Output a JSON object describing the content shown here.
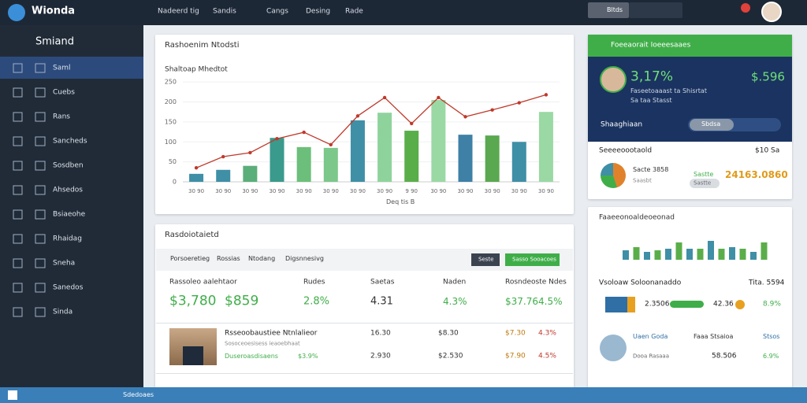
{
  "topbar": {
    "brand": "Wionda",
    "nav": [
      "Nadeerd tig",
      "Sandis",
      "Cangs",
      "Desing",
      "Rade"
    ],
    "search": "Bltds"
  },
  "sidebar": {
    "title": "Smiand",
    "items": [
      "Saml",
      "Cuebs",
      "Rans",
      "Sancheds",
      "Sosdben",
      "Ahsedos",
      "Bsiaeohe",
      "Rhaidag",
      "Sneha",
      "Sanedos",
      "Sinda"
    ]
  },
  "chart_panel": {
    "title": "Rashoenim Ntodsti",
    "chart": {
      "type": "bar",
      "title": "Shaltoap Mhedtot",
      "xlabel": "Deq tis B",
      "categories": [
        "30 90",
        "30 90",
        "30 90",
        "30 90",
        "30 90",
        "30 90",
        "30 90",
        "30 90",
        "9 90",
        "30 90",
        "30 90",
        "30 90",
        "30 90",
        "30 90"
      ],
      "values": [
        20,
        30,
        40,
        110,
        87,
        85,
        154,
        173,
        128,
        205,
        118,
        116,
        100,
        175
      ],
      "colors": [
        "#3f8fa6",
        "#3f8fa6",
        "#5aae7a",
        "#3a9a8c",
        "#6cbf7a",
        "#7cc78a",
        "#3f8fa6",
        "#8fd39c",
        "#5aae4a",
        "#9ad8a4",
        "#3f80a6",
        "#5aa850",
        "#3f8fa6",
        "#9ad8a4"
      ],
      "line_values": [
        35,
        63,
        73,
        108,
        124,
        93,
        165,
        211,
        146,
        211,
        163,
        180,
        198,
        218
      ],
      "line_color": "#c0392b",
      "line_color2": "#3f6fa6",
      "ylim": [
        0,
        270
      ],
      "yticks": [
        0,
        50,
        100,
        150,
        200,
        250
      ]
    }
  },
  "kpi_panel": {
    "title": "Foeeaorait Ioeeesaaes",
    "value_left": "3,17%",
    "value_right": "$.596",
    "sub1": "Faseetoaaast ta Shisrtat",
    "sub2": "Sa taa Stasst",
    "section": "Shaaghiaan",
    "toggle": "Sbdsa",
    "row_title": "Seeeeoootaold",
    "row_value": "$10 Sa",
    "pie_label": "Sacte 3858",
    "pie_sub": "Saasbt",
    "pie_tag": "Sastte",
    "big_value": "24163.0860",
    "pill": "Sastte"
  },
  "table_panel": {
    "title": "Rasdoiotaietd",
    "tabs": [
      "Porsoeretieg",
      "Rossias",
      "Ntodang",
      "Digsnnesivg"
    ],
    "buttons": [
      "Seste",
      "Sasso Sooacoes"
    ],
    "header": [
      "Rassoleo aalehtaor",
      "Rudes",
      "Saetas",
      "Naden",
      "Rosndeoste Ndes"
    ],
    "row1": [
      "$3,780",
      "$859",
      "2.8%",
      "4.31",
      "4.3%",
      "$37.76",
      "4.5%"
    ],
    "row2": {
      "name": "Rsseoobaustiee Ntnlalieor",
      "sub": "Sosoceoesisess ieaoebhaat",
      "tag": "Duseroasdisaens",
      "share": "$3.9%",
      "c1": [
        "16.30",
        "2.930"
      ],
      "c2": [
        "$8.30",
        "$2.530"
      ],
      "c3": [
        "$7.30",
        "$7.90"
      ],
      "c4": [
        "4.3%",
        "4.5%"
      ]
    }
  },
  "side_panel": {
    "title": "Faaeeonoaldeoeonad",
    "chart": {
      "type": "bar",
      "values": [
        12,
        16,
        10,
        12,
        14,
        22,
        14,
        14,
        24,
        14,
        16,
        14,
        10,
        22
      ],
      "colors": [
        "#3f8fa6",
        "#5aae4a"
      ],
      "ylim": [
        0,
        30
      ]
    },
    "row_title": "Vsoloaw Soloonanaddo",
    "row_value": "Tita. 5594",
    "v1": "2.3506",
    "v2": "42.36",
    "v3": "8.9%",
    "user": "Uaen Goda",
    "user_sub": "Dooa Rasaaa",
    "user_role": "Faaa Stsaioa",
    "status": "Stsos",
    "v4": "58.506",
    "v5": "6.9%"
  },
  "taskbar": {
    "app": "Sdedoaes"
  }
}
